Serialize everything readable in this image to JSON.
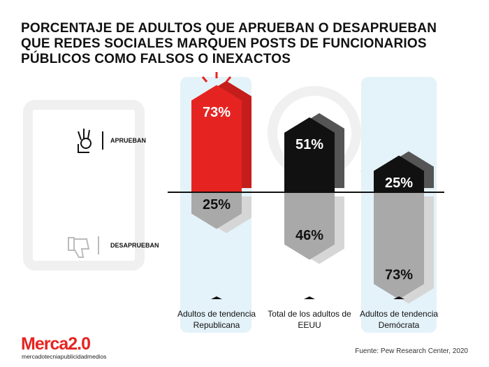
{
  "chart_data": {
    "type": "diverging-bar",
    "title": "PORCENTAJE DE ADULTOS QUE APRUEBAN O DESAPRUEBAN QUE REDES SOCIALES MARQUEN POSTS DE FUNCIONARIOS PÚBLICOS COMO FALSOS O INEXACTOS",
    "categories": [
      "Adultos de tendencia Republicana",
      "Total de los adultos de EEUU",
      "Adultos de tendencia Demócrata"
    ],
    "series": [
      {
        "name": "APRUEBAN",
        "colors": [
          "#e52421",
          "#111111",
          "#111111"
        ],
        "values": [
          73,
          51,
          25
        ],
        "value_labels": [
          "73%",
          "51%",
          "25%"
        ]
      },
      {
        "name": "DESAPRUEBAN",
        "color": "#a9a9a9",
        "values": [
          25,
          46,
          73
        ],
        "value_labels": [
          "25%",
          "46%",
          "73%"
        ]
      }
    ],
    "source": "Fuente: Pew Research Center, 2020"
  },
  "branding": {
    "logo": "Merca2.0",
    "tagline": "mercadotecniapublicidadmedios"
  }
}
